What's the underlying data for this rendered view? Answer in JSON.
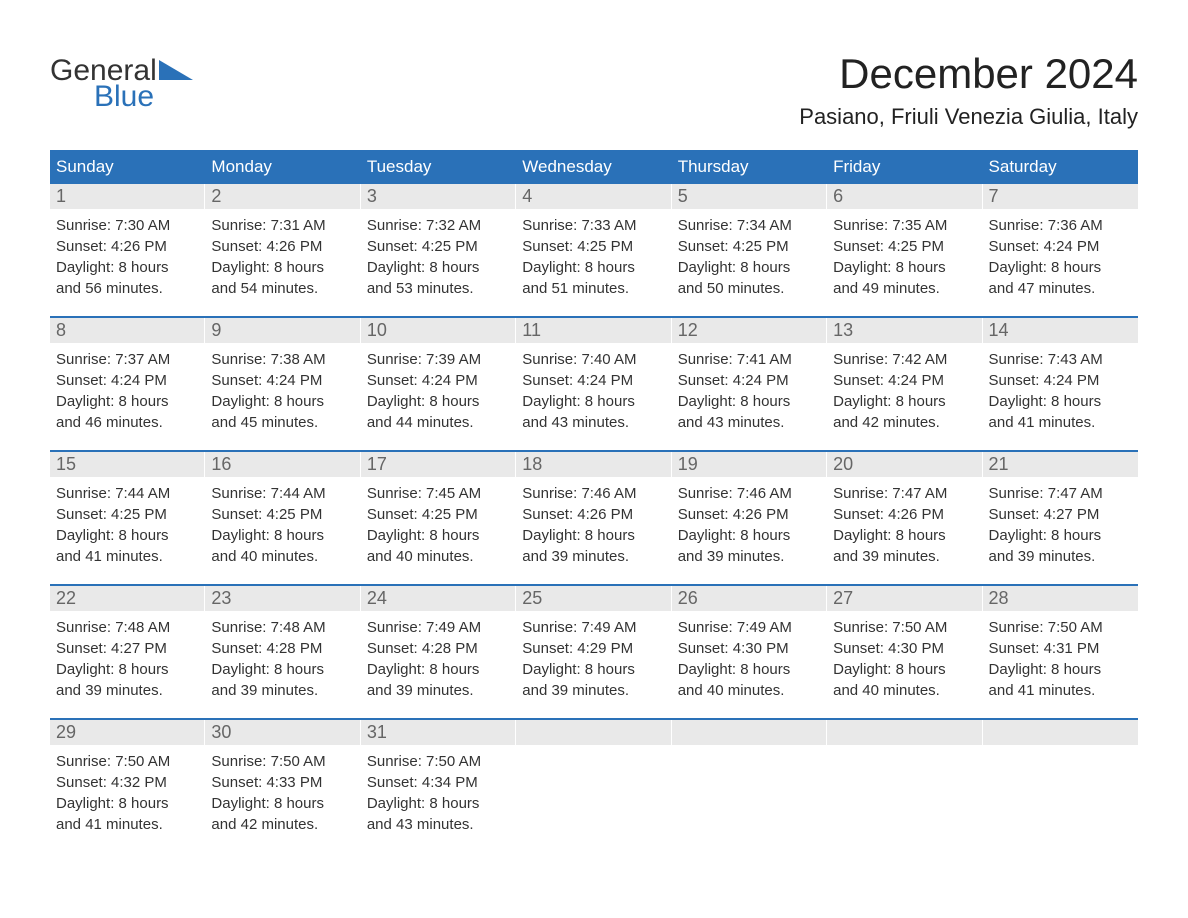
{
  "logo": {
    "general": "General",
    "blue": "Blue"
  },
  "title": "December 2024",
  "location": "Pasiano, Friuli Venezia Giulia, Italy",
  "colors": {
    "header_bg": "#2a71b8",
    "header_text": "#ffffff",
    "daynum_bg": "#e9e9e9",
    "daynum_text": "#666666",
    "body_bg": "#ffffff",
    "text": "#333333"
  },
  "day_names": [
    "Sunday",
    "Monday",
    "Tuesday",
    "Wednesday",
    "Thursday",
    "Friday",
    "Saturday"
  ],
  "labels": {
    "sunrise": "Sunrise:",
    "sunset": "Sunset:",
    "daylight": "Daylight:"
  },
  "weeks": [
    [
      {
        "n": "1",
        "sr": "7:30 AM",
        "ss": "4:26 PM",
        "d1": "8 hours",
        "d2": "and 56 minutes."
      },
      {
        "n": "2",
        "sr": "7:31 AM",
        "ss": "4:26 PM",
        "d1": "8 hours",
        "d2": "and 54 minutes."
      },
      {
        "n": "3",
        "sr": "7:32 AM",
        "ss": "4:25 PM",
        "d1": "8 hours",
        "d2": "and 53 minutes."
      },
      {
        "n": "4",
        "sr": "7:33 AM",
        "ss": "4:25 PM",
        "d1": "8 hours",
        "d2": "and 51 minutes."
      },
      {
        "n": "5",
        "sr": "7:34 AM",
        "ss": "4:25 PM",
        "d1": "8 hours",
        "d2": "and 50 minutes."
      },
      {
        "n": "6",
        "sr": "7:35 AM",
        "ss": "4:25 PM",
        "d1": "8 hours",
        "d2": "and 49 minutes."
      },
      {
        "n": "7",
        "sr": "7:36 AM",
        "ss": "4:24 PM",
        "d1": "8 hours",
        "d2": "and 47 minutes."
      }
    ],
    [
      {
        "n": "8",
        "sr": "7:37 AM",
        "ss": "4:24 PM",
        "d1": "8 hours",
        "d2": "and 46 minutes."
      },
      {
        "n": "9",
        "sr": "7:38 AM",
        "ss": "4:24 PM",
        "d1": "8 hours",
        "d2": "and 45 minutes."
      },
      {
        "n": "10",
        "sr": "7:39 AM",
        "ss": "4:24 PM",
        "d1": "8 hours",
        "d2": "and 44 minutes."
      },
      {
        "n": "11",
        "sr": "7:40 AM",
        "ss": "4:24 PM",
        "d1": "8 hours",
        "d2": "and 43 minutes."
      },
      {
        "n": "12",
        "sr": "7:41 AM",
        "ss": "4:24 PM",
        "d1": "8 hours",
        "d2": "and 43 minutes."
      },
      {
        "n": "13",
        "sr": "7:42 AM",
        "ss": "4:24 PM",
        "d1": "8 hours",
        "d2": "and 42 minutes."
      },
      {
        "n": "14",
        "sr": "7:43 AM",
        "ss": "4:24 PM",
        "d1": "8 hours",
        "d2": "and 41 minutes."
      }
    ],
    [
      {
        "n": "15",
        "sr": "7:44 AM",
        "ss": "4:25 PM",
        "d1": "8 hours",
        "d2": "and 41 minutes."
      },
      {
        "n": "16",
        "sr": "7:44 AM",
        "ss": "4:25 PM",
        "d1": "8 hours",
        "d2": "and 40 minutes."
      },
      {
        "n": "17",
        "sr": "7:45 AM",
        "ss": "4:25 PM",
        "d1": "8 hours",
        "d2": "and 40 minutes."
      },
      {
        "n": "18",
        "sr": "7:46 AM",
        "ss": "4:26 PM",
        "d1": "8 hours",
        "d2": "and 39 minutes."
      },
      {
        "n": "19",
        "sr": "7:46 AM",
        "ss": "4:26 PM",
        "d1": "8 hours",
        "d2": "and 39 minutes."
      },
      {
        "n": "20",
        "sr": "7:47 AM",
        "ss": "4:26 PM",
        "d1": "8 hours",
        "d2": "and 39 minutes."
      },
      {
        "n": "21",
        "sr": "7:47 AM",
        "ss": "4:27 PM",
        "d1": "8 hours",
        "d2": "and 39 minutes."
      }
    ],
    [
      {
        "n": "22",
        "sr": "7:48 AM",
        "ss": "4:27 PM",
        "d1": "8 hours",
        "d2": "and 39 minutes."
      },
      {
        "n": "23",
        "sr": "7:48 AM",
        "ss": "4:28 PM",
        "d1": "8 hours",
        "d2": "and 39 minutes."
      },
      {
        "n": "24",
        "sr": "7:49 AM",
        "ss": "4:28 PM",
        "d1": "8 hours",
        "d2": "and 39 minutes."
      },
      {
        "n": "25",
        "sr": "7:49 AM",
        "ss": "4:29 PM",
        "d1": "8 hours",
        "d2": "and 39 minutes."
      },
      {
        "n": "26",
        "sr": "7:49 AM",
        "ss": "4:30 PM",
        "d1": "8 hours",
        "d2": "and 40 minutes."
      },
      {
        "n": "27",
        "sr": "7:50 AM",
        "ss": "4:30 PM",
        "d1": "8 hours",
        "d2": "and 40 minutes."
      },
      {
        "n": "28",
        "sr": "7:50 AM",
        "ss": "4:31 PM",
        "d1": "8 hours",
        "d2": "and 41 minutes."
      }
    ],
    [
      {
        "n": "29",
        "sr": "7:50 AM",
        "ss": "4:32 PM",
        "d1": "8 hours",
        "d2": "and 41 minutes."
      },
      {
        "n": "30",
        "sr": "7:50 AM",
        "ss": "4:33 PM",
        "d1": "8 hours",
        "d2": "and 42 minutes."
      },
      {
        "n": "31",
        "sr": "7:50 AM",
        "ss": "4:34 PM",
        "d1": "8 hours",
        "d2": "and 43 minutes."
      },
      {
        "empty": true
      },
      {
        "empty": true
      },
      {
        "empty": true
      },
      {
        "empty": true
      }
    ]
  ]
}
